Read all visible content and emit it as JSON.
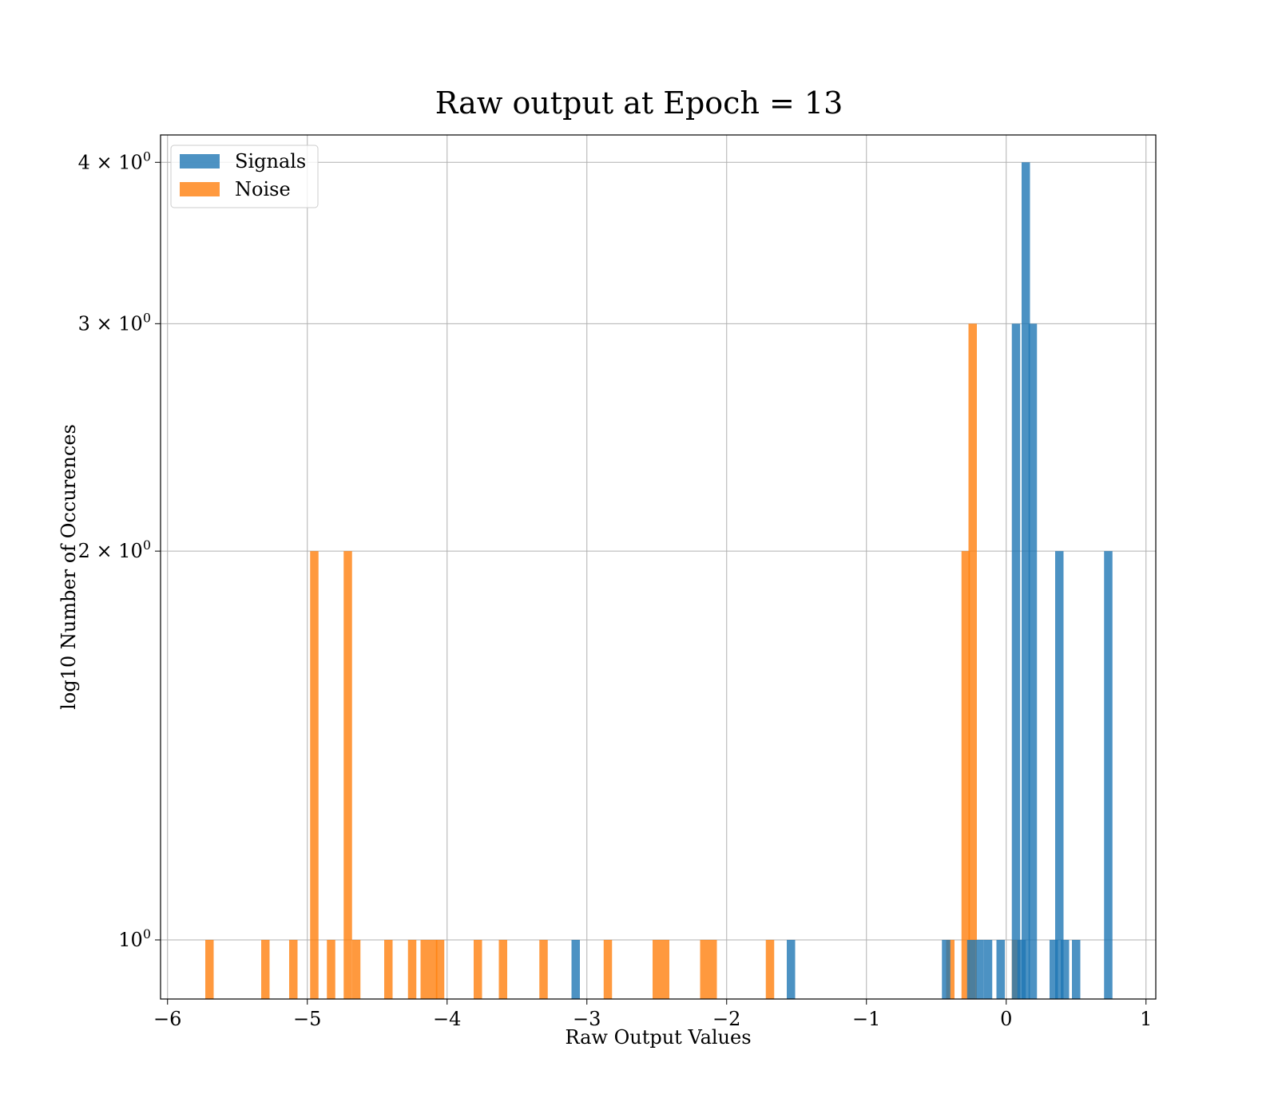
{
  "chart_data": {
    "type": "bar",
    "title": "Raw output at Epoch = 13",
    "xlabel": "Raw Output Values",
    "ylabel": "log10 Number of Occurences",
    "xlim": [
      -6.05,
      1.07
    ],
    "ylim": [
      0.9,
      4.2
    ],
    "yscale": "log",
    "grid": true,
    "legend_position": "upper-left",
    "bin_width": 0.06,
    "x_ticks": [
      {
        "value": -6,
        "label": "−6"
      },
      {
        "value": -5,
        "label": "−5"
      },
      {
        "value": -4,
        "label": "−4"
      },
      {
        "value": -3,
        "label": "−3"
      },
      {
        "value": -2,
        "label": "−2"
      },
      {
        "value": -1,
        "label": "−1"
      },
      {
        "value": 0,
        "label": "0"
      },
      {
        "value": 1,
        "label": "1"
      }
    ],
    "y_ticks": [
      {
        "value": 1,
        "base": "10",
        "exp": "0"
      },
      {
        "value": 2,
        "base": "2 × 10",
        "exp": "0"
      },
      {
        "value": 3,
        "base": "3 × 10",
        "exp": "0"
      },
      {
        "value": 4,
        "base": "4 × 10",
        "exp": "0"
      }
    ],
    "series": [
      {
        "name": "Signals",
        "color": "#1f77b4",
        "bars": [
          {
            "x": -3.08,
            "count": 1
          },
          {
            "x": -1.54,
            "count": 1
          },
          {
            "x": -0.43,
            "count": 1
          },
          {
            "x": -0.25,
            "count": 1
          },
          {
            "x": -0.19,
            "count": 1
          },
          {
            "x": -0.13,
            "count": 1
          },
          {
            "x": -0.04,
            "count": 1
          },
          {
            "x": 0.07,
            "count": 3
          },
          {
            "x": 0.11,
            "count": 1
          },
          {
            "x": 0.14,
            "count": 4
          },
          {
            "x": 0.19,
            "count": 3
          },
          {
            "x": 0.34,
            "count": 1
          },
          {
            "x": 0.38,
            "count": 2
          },
          {
            "x": 0.42,
            "count": 1
          },
          {
            "x": 0.5,
            "count": 1
          },
          {
            "x": 0.73,
            "count": 2
          }
        ]
      },
      {
        "name": "Noise",
        "color": "#ff7f0e",
        "bars": [
          {
            "x": -5.7,
            "count": 1
          },
          {
            "x": -5.3,
            "count": 1
          },
          {
            "x": -5.1,
            "count": 1
          },
          {
            "x": -4.95,
            "count": 2
          },
          {
            "x": -4.83,
            "count": 1
          },
          {
            "x": -4.71,
            "count": 2
          },
          {
            "x": -4.65,
            "count": 1
          },
          {
            "x": -4.42,
            "count": 1
          },
          {
            "x": -4.25,
            "count": 1
          },
          {
            "x": -4.16,
            "count": 1
          },
          {
            "x": -4.1,
            "count": 1
          },
          {
            "x": -4.05,
            "count": 1
          },
          {
            "x": -3.78,
            "count": 1
          },
          {
            "x": -3.6,
            "count": 1
          },
          {
            "x": -3.31,
            "count": 1
          },
          {
            "x": -2.85,
            "count": 1
          },
          {
            "x": -2.5,
            "count": 1
          },
          {
            "x": -2.44,
            "count": 1
          },
          {
            "x": -2.16,
            "count": 1
          },
          {
            "x": -2.1,
            "count": 1
          },
          {
            "x": -1.69,
            "count": 1
          },
          {
            "x": -0.4,
            "count": 1
          },
          {
            "x": -0.29,
            "count": 2
          },
          {
            "x": -0.24,
            "count": 3
          },
          {
            "x": 0.07,
            "count": 1
          }
        ]
      }
    ]
  }
}
